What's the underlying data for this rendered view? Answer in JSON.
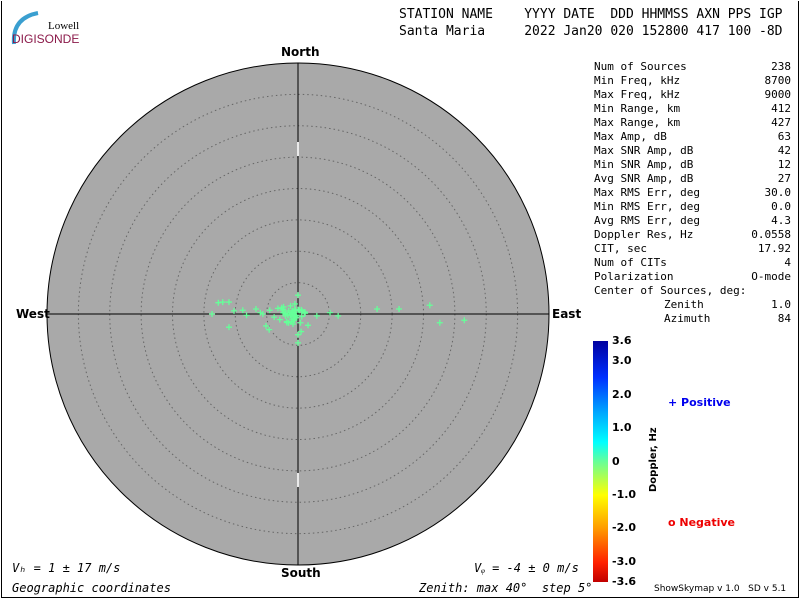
{
  "logo": {
    "line1": "Lowell",
    "line2": "DIGISONDE"
  },
  "header": {
    "labels": "STATION NAME    YYYY DATE  DDD HHMMSS AXN PPS IGP",
    "values": "Santa Maria     2022 Jan20 020 152800 417 100 -8D"
  },
  "directions": {
    "north": "North",
    "south": "South",
    "east": "East",
    "west": "West"
  },
  "stats": [
    {
      "label": "Num of Sources",
      "value": "238"
    },
    {
      "label": "Min Freq, kHz",
      "value": "8700"
    },
    {
      "label": "Max Freq, kHz",
      "value": "9000"
    },
    {
      "label": "Min Range, km",
      "value": "412"
    },
    {
      "label": "Max Range, km",
      "value": "427"
    },
    {
      "label": "Max Amp, dB",
      "value": "63"
    },
    {
      "label": "Max SNR Amp, dB",
      "value": "42"
    },
    {
      "label": "Min SNR Amp, dB",
      "value": "12"
    },
    {
      "label": "Avg SNR Amp, dB",
      "value": "27"
    },
    {
      "label": "Max RMS Err, deg",
      "value": "30.0"
    },
    {
      "label": "Min RMS Err, deg",
      "value": "0.0"
    },
    {
      "label": "Avg RMS Err, deg",
      "value": "4.3"
    },
    {
      "label": "Doppler Res, Hz",
      "value": "0.0558"
    },
    {
      "label": "CIT, sec",
      "value": "17.92"
    },
    {
      "label": "Num of CITs",
      "value": "4"
    },
    {
      "label": "Polarization",
      "value": "O-mode"
    }
  ],
  "center": {
    "title": "Center of Sources, deg:",
    "zenith_label": "Zenith",
    "zenith": "1.0",
    "azimuth_label": "Azimuth",
    "azimuth": "84"
  },
  "footer": {
    "vh": "Vₕ = 1 ± 17 m/s",
    "vz": "Vᵩ = -4 ± 0 m/s",
    "coords": "Geographic coordinates",
    "zenith": "Zenith: max 40°  step 5°",
    "version": "ShowSkymap v 1.0   SD v 5.1"
  },
  "legend": {
    "positive": "Positive",
    "negative": "Negative",
    "positive_color": "#0000ee",
    "negative_color": "#ee0000",
    "axis_label": "Doppler, Hz",
    "ticks": [
      "3.6",
      "3.0",
      "2.0",
      "1.0",
      "0",
      "-1.0",
      "-2.0",
      "-3.0",
      "-3.6"
    ]
  },
  "chart_data": {
    "type": "scatter",
    "title": "",
    "zenith_max_deg": 40,
    "zenith_step_deg": 5,
    "doppler_range": [
      -3.6,
      3.6
    ],
    "point_color": "#66ff99",
    "background": "#a9a9a9",
    "points_east_north_deg": [
      [
        21,
        1.4
      ],
      [
        26.5,
        -1
      ],
      [
        22.6,
        -1.4
      ],
      [
        16.1,
        0.8
      ],
      [
        12.6,
        0.8
      ],
      [
        -13.7,
        0
      ],
      [
        -12.7,
        1.8
      ],
      [
        -12,
        1.9
      ],
      [
        -11,
        1.9
      ],
      [
        -11,
        -2.1
      ],
      [
        -5.1,
        -1.9
      ],
      [
        0,
        3
      ],
      [
        0,
        -4.6
      ],
      [
        0,
        -3.3
      ],
      [
        3,
        -0.3
      ],
      [
        5.1,
        0.2
      ],
      [
        -8.8,
        0.6
      ],
      [
        -6.7,
        0.8
      ],
      [
        -10.2,
        0.5
      ],
      [
        -8.2,
        -0.2
      ],
      [
        -6,
        0.2
      ],
      [
        -4.5,
        0.6
      ],
      [
        -3.8,
        -0.5
      ],
      [
        -2.6,
        1
      ],
      [
        -2,
        -0.3
      ],
      [
        -1.5,
        0.5
      ],
      [
        -1,
        -0.8
      ],
      [
        -0.6,
        0.3
      ],
      [
        -0.3,
        -0.2
      ],
      [
        0.2,
        0.6
      ],
      [
        0.6,
        -0.4
      ],
      [
        1,
        0.2
      ],
      [
        -1.2,
        1.3
      ],
      [
        -0.5,
        1.6
      ],
      [
        0.4,
        -1.4
      ],
      [
        -1.8,
        -1.2
      ],
      [
        -0.8,
        -1.6
      ],
      [
        1.6,
        -1.8
      ],
      [
        -3.2,
        0.9
      ],
      [
        -2.9,
        -0.9
      ],
      [
        -4.6,
        -2.5
      ],
      [
        -5.6,
        0
      ],
      [
        6.4,
        -0.3
      ],
      [
        0.5,
        -2.8
      ]
    ]
  }
}
